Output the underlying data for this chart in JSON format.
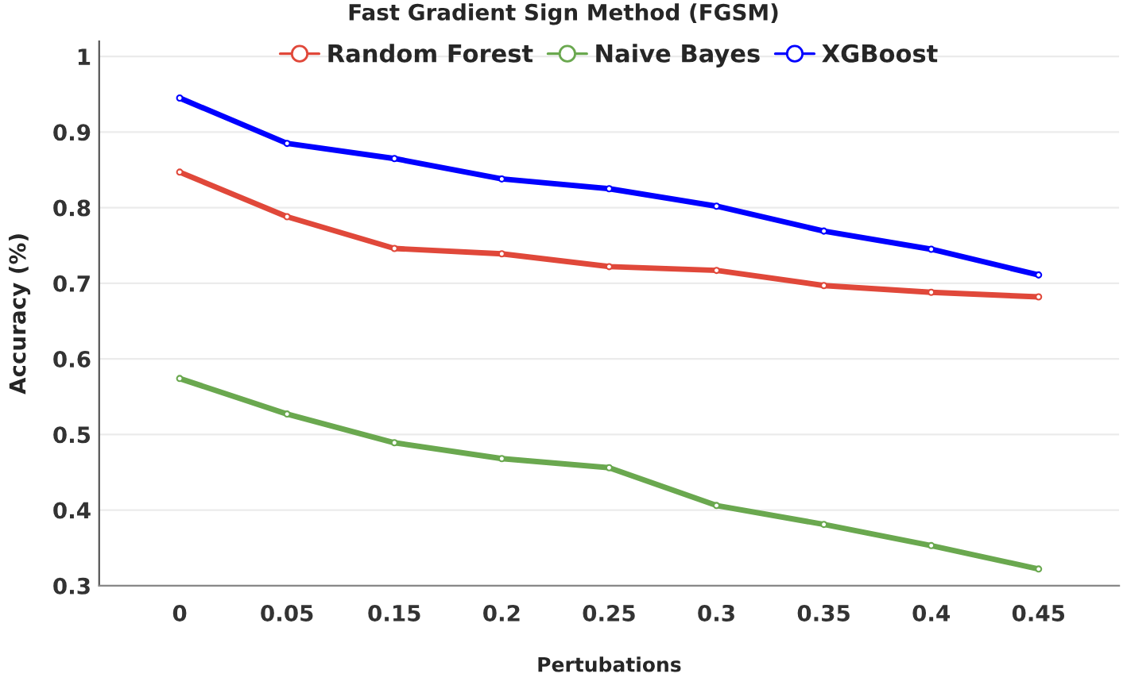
{
  "chart_data": {
    "type": "line",
    "title": "Fast Gradient Sign Method (FGSM)",
    "xlabel": "Pertubations",
    "ylabel": "Accuracy (%)",
    "categories": [
      "0",
      "0.05",
      "0.15",
      "0.2",
      "0.25",
      "0.3",
      "0.35",
      "0.4",
      "0.45"
    ],
    "series": [
      {
        "name": "Random Forest",
        "color": "#e0483a",
        "values": [
          0.847,
          0.788,
          0.746,
          0.739,
          0.722,
          0.717,
          0.697,
          0.688,
          0.682
        ]
      },
      {
        "name": "Naive Bayes",
        "color": "#6aa84f",
        "values": [
          0.574,
          0.527,
          0.489,
          0.468,
          0.456,
          0.406,
          0.381,
          0.353,
          0.322
        ]
      },
      {
        "name": "XGBoost",
        "color": "#0000ff",
        "values": [
          0.945,
          0.885,
          0.865,
          0.838,
          0.825,
          0.802,
          0.769,
          0.745,
          0.711
        ]
      }
    ],
    "ylim": [
      0.3,
      1.02
    ],
    "yticks": [
      0.3,
      0.4,
      0.5,
      0.6,
      0.7,
      0.8,
      0.9,
      1
    ],
    "grid": "y",
    "legend": "top",
    "marker": "circle",
    "line_style": "solid"
  }
}
